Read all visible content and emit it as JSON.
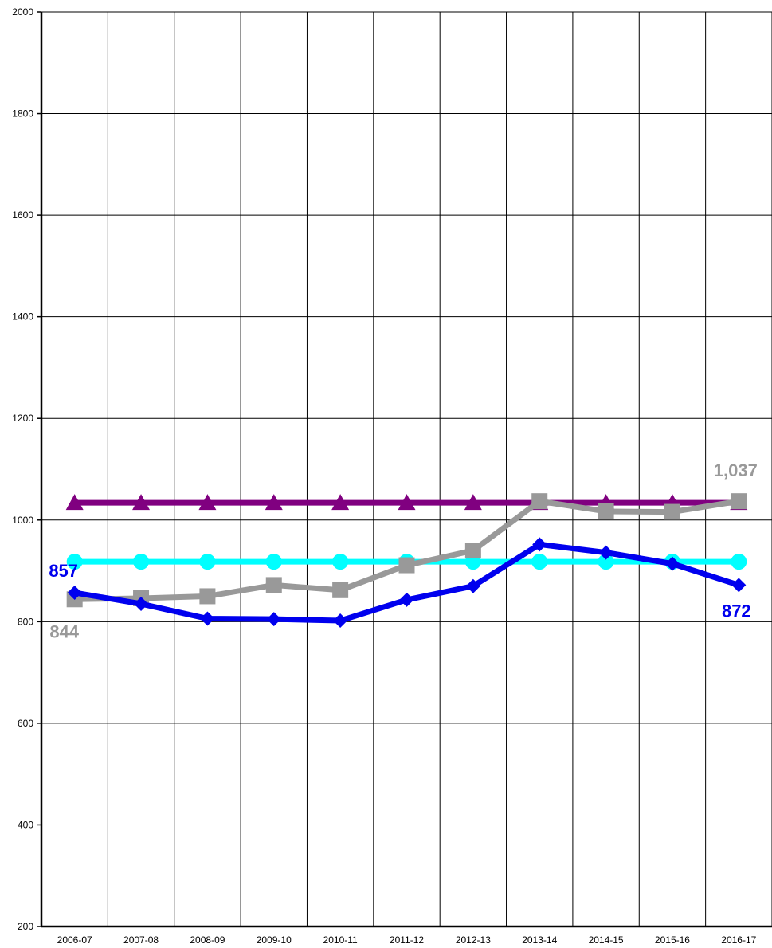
{
  "chart_data": {
    "type": "line",
    "title": "",
    "xlabel": "",
    "ylabel": "",
    "ylim": [
      200,
      2000
    ],
    "yticks": [
      200,
      400,
      600,
      800,
      1000,
      1200,
      1400,
      1600,
      1800,
      2000
    ],
    "grid": true,
    "legend": "none",
    "categories": [
      "2006-07",
      "2007-08",
      "2008-09",
      "2009-10",
      "2010-11",
      "2011-12",
      "2012-13",
      "2013-14",
      "2014-15",
      "2015-16",
      "2016-17"
    ],
    "series": [
      {
        "color": "#800080",
        "marker": "triangle",
        "values": [
          1034,
          1034,
          1034,
          1034,
          1034,
          1034,
          1034,
          1034,
          1034,
          1034,
          1034
        ]
      },
      {
        "color": "#00FFFF",
        "marker": "circle",
        "values": [
          918,
          918,
          918,
          918,
          918,
          918,
          918,
          918,
          918,
          918,
          918
        ]
      },
      {
        "color": "#999999",
        "marker": "square",
        "values": [
          844,
          846,
          850,
          872,
          862,
          911,
          940,
          1037,
          1017,
          1016,
          1037
        ]
      },
      {
        "color": "#0000EE",
        "marker": "diamond",
        "values": [
          857,
          835,
          806,
          805,
          802,
          843,
          870,
          952,
          936,
          914,
          872
        ]
      }
    ],
    "data_labels": [
      {
        "text": "857",
        "series": 3,
        "index": 0,
        "color": "#0000EE"
      },
      {
        "text": "844",
        "series": 2,
        "index": 0,
        "color": "#999999"
      },
      {
        "text": "1,037",
        "series": 2,
        "index": 10,
        "color": "#999999"
      },
      {
        "text": "872",
        "series": 3,
        "index": 10,
        "color": "#0000EE"
      }
    ]
  }
}
